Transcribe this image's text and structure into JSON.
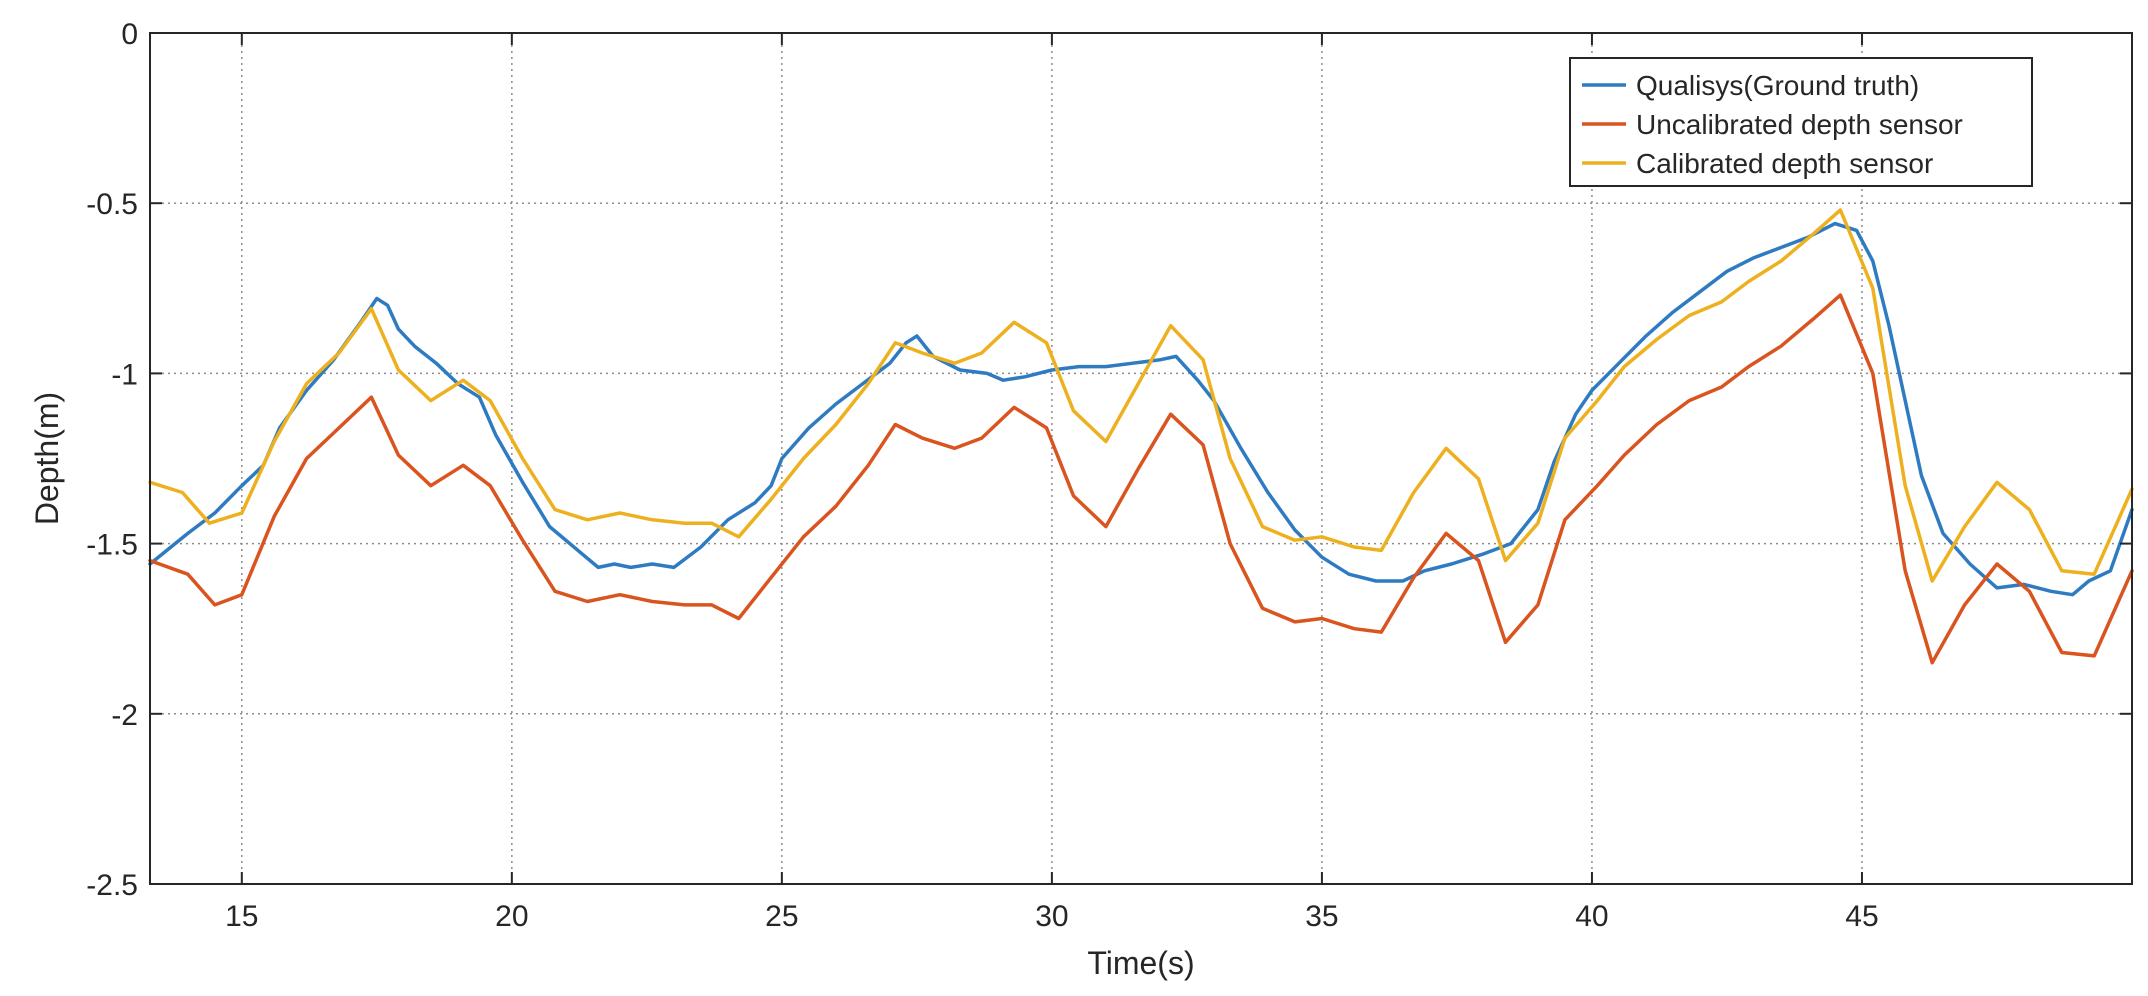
{
  "chart_data": {
    "type": "line",
    "title": "",
    "xlabel": "Time(s)",
    "ylabel": "Depth(m)",
    "xlim": [
      13.3,
      50
    ],
    "ylim": [
      -2.5,
      0
    ],
    "xticks": [
      15,
      20,
      25,
      30,
      35,
      40,
      45
    ],
    "yticks": [
      0,
      -0.5,
      -1,
      -1.5,
      -2,
      -2.5
    ],
    "xtick_labels": [
      "15",
      "20",
      "25",
      "30",
      "35",
      "40",
      "45"
    ],
    "ytick_labels": [
      "0",
      "-0.5",
      "-1",
      "-1.5",
      "-2",
      "-2.5"
    ],
    "grid": true,
    "legend_position": "top-right",
    "series": [
      {
        "name": "Qualisys(Ground truth)",
        "color": "#2f7bc1",
        "points": [
          [
            13.3,
            -1.56
          ],
          [
            14.0,
            -1.47
          ],
          [
            14.5,
            -1.41
          ],
          [
            15.0,
            -1.33
          ],
          [
            15.4,
            -1.27
          ],
          [
            15.7,
            -1.16
          ],
          [
            16.2,
            -1.05
          ],
          [
            16.7,
            -0.96
          ],
          [
            17.2,
            -0.85
          ],
          [
            17.5,
            -0.78
          ],
          [
            17.7,
            -0.8
          ],
          [
            17.9,
            -0.87
          ],
          [
            18.2,
            -0.92
          ],
          [
            18.6,
            -0.97
          ],
          [
            19.0,
            -1.03
          ],
          [
            19.4,
            -1.07
          ],
          [
            19.7,
            -1.18
          ],
          [
            20.2,
            -1.32
          ],
          [
            20.7,
            -1.45
          ],
          [
            21.3,
            -1.53
          ],
          [
            21.6,
            -1.57
          ],
          [
            21.9,
            -1.56
          ],
          [
            22.2,
            -1.57
          ],
          [
            22.6,
            -1.56
          ],
          [
            23.0,
            -1.57
          ],
          [
            23.5,
            -1.51
          ],
          [
            24.0,
            -1.43
          ],
          [
            24.5,
            -1.38
          ],
          [
            24.8,
            -1.33
          ],
          [
            25.0,
            -1.25
          ],
          [
            25.5,
            -1.16
          ],
          [
            26.0,
            -1.09
          ],
          [
            26.5,
            -1.03
          ],
          [
            27.0,
            -0.97
          ],
          [
            27.3,
            -0.91
          ],
          [
            27.5,
            -0.89
          ],
          [
            27.8,
            -0.95
          ],
          [
            28.3,
            -0.99
          ],
          [
            28.8,
            -1.0
          ],
          [
            29.1,
            -1.02
          ],
          [
            29.5,
            -1.01
          ],
          [
            30.0,
            -0.99
          ],
          [
            30.5,
            -0.98
          ],
          [
            31.0,
            -0.98
          ],
          [
            31.5,
            -0.97
          ],
          [
            32.0,
            -0.96
          ],
          [
            32.3,
            -0.95
          ],
          [
            32.7,
            -1.02
          ],
          [
            33.0,
            -1.08
          ],
          [
            33.5,
            -1.22
          ],
          [
            34.0,
            -1.35
          ],
          [
            34.5,
            -1.46
          ],
          [
            35.0,
            -1.54
          ],
          [
            35.5,
            -1.59
          ],
          [
            36.0,
            -1.61
          ],
          [
            36.5,
            -1.61
          ],
          [
            36.9,
            -1.58
          ],
          [
            37.4,
            -1.56
          ],
          [
            38.0,
            -1.53
          ],
          [
            38.5,
            -1.5
          ],
          [
            39.0,
            -1.4
          ],
          [
            39.3,
            -1.26
          ],
          [
            39.7,
            -1.12
          ],
          [
            40.0,
            -1.05
          ],
          [
            40.5,
            -0.97
          ],
          [
            41.0,
            -0.89
          ],
          [
            41.5,
            -0.82
          ],
          [
            42.0,
            -0.76
          ],
          [
            42.5,
            -0.7
          ],
          [
            43.0,
            -0.66
          ],
          [
            43.5,
            -0.63
          ],
          [
            44.0,
            -0.6
          ],
          [
            44.5,
            -0.56
          ],
          [
            44.9,
            -0.58
          ],
          [
            45.2,
            -0.67
          ],
          [
            45.5,
            -0.86
          ],
          [
            45.8,
            -1.08
          ],
          [
            46.1,
            -1.3
          ],
          [
            46.5,
            -1.47
          ],
          [
            47.0,
            -1.56
          ],
          [
            47.5,
            -1.63
          ],
          [
            48.0,
            -1.62
          ],
          [
            48.5,
            -1.64
          ],
          [
            48.9,
            -1.65
          ],
          [
            49.2,
            -1.61
          ],
          [
            49.6,
            -1.58
          ],
          [
            50.0,
            -1.4
          ]
        ]
      },
      {
        "name": "Uncalibrated depth sensor",
        "color": "#d9541f",
        "points": [
          [
            13.3,
            -1.55
          ],
          [
            14.0,
            -1.59
          ],
          [
            14.5,
            -1.68
          ],
          [
            15.0,
            -1.65
          ],
          [
            15.6,
            -1.42
          ],
          [
            16.2,
            -1.25
          ],
          [
            16.8,
            -1.16
          ],
          [
            17.4,
            -1.07
          ],
          [
            17.9,
            -1.24
          ],
          [
            18.5,
            -1.33
          ],
          [
            19.1,
            -1.27
          ],
          [
            19.6,
            -1.33
          ],
          [
            20.2,
            -1.49
          ],
          [
            20.8,
            -1.64
          ],
          [
            21.4,
            -1.67
          ],
          [
            22.0,
            -1.65
          ],
          [
            22.6,
            -1.67
          ],
          [
            23.2,
            -1.68
          ],
          [
            23.7,
            -1.68
          ],
          [
            24.2,
            -1.72
          ],
          [
            24.8,
            -1.6
          ],
          [
            25.4,
            -1.48
          ],
          [
            26.0,
            -1.39
          ],
          [
            26.6,
            -1.27
          ],
          [
            27.1,
            -1.15
          ],
          [
            27.6,
            -1.19
          ],
          [
            28.2,
            -1.22
          ],
          [
            28.7,
            -1.19
          ],
          [
            29.3,
            -1.1
          ],
          [
            29.9,
            -1.16
          ],
          [
            30.4,
            -1.36
          ],
          [
            31.0,
            -1.45
          ],
          [
            31.6,
            -1.28
          ],
          [
            32.2,
            -1.12
          ],
          [
            32.8,
            -1.21
          ],
          [
            33.3,
            -1.5
          ],
          [
            33.9,
            -1.69
          ],
          [
            34.5,
            -1.73
          ],
          [
            35.0,
            -1.72
          ],
          [
            35.6,
            -1.75
          ],
          [
            36.1,
            -1.76
          ],
          [
            36.7,
            -1.6
          ],
          [
            37.3,
            -1.47
          ],
          [
            37.9,
            -1.55
          ],
          [
            38.4,
            -1.79
          ],
          [
            39.0,
            -1.68
          ],
          [
            39.5,
            -1.43
          ],
          [
            40.1,
            -1.33
          ],
          [
            40.6,
            -1.24
          ],
          [
            41.2,
            -1.15
          ],
          [
            41.8,
            -1.08
          ],
          [
            42.4,
            -1.04
          ],
          [
            42.9,
            -0.98
          ],
          [
            43.5,
            -0.92
          ],
          [
            44.1,
            -0.84
          ],
          [
            44.6,
            -0.77
          ],
          [
            45.2,
            -1.0
          ],
          [
            45.8,
            -1.58
          ],
          [
            46.3,
            -1.85
          ],
          [
            46.9,
            -1.68
          ],
          [
            47.5,
            -1.56
          ],
          [
            48.1,
            -1.64
          ],
          [
            48.7,
            -1.82
          ],
          [
            49.3,
            -1.83
          ],
          [
            50.0,
            -1.58
          ]
        ]
      },
      {
        "name": "Calibrated depth sensor",
        "color": "#edb120",
        "points": [
          [
            13.3,
            -1.32
          ],
          [
            13.9,
            -1.35
          ],
          [
            14.4,
            -1.44
          ],
          [
            15.0,
            -1.41
          ],
          [
            15.6,
            -1.2
          ],
          [
            16.2,
            -1.03
          ],
          [
            16.8,
            -0.94
          ],
          [
            17.4,
            -0.81
          ],
          [
            17.9,
            -0.99
          ],
          [
            18.5,
            -1.08
          ],
          [
            19.1,
            -1.02
          ],
          [
            19.6,
            -1.08
          ],
          [
            20.2,
            -1.25
          ],
          [
            20.8,
            -1.4
          ],
          [
            21.4,
            -1.43
          ],
          [
            22.0,
            -1.41
          ],
          [
            22.6,
            -1.43
          ],
          [
            23.2,
            -1.44
          ],
          [
            23.7,
            -1.44
          ],
          [
            24.2,
            -1.48
          ],
          [
            24.8,
            -1.37
          ],
          [
            25.4,
            -1.25
          ],
          [
            26.0,
            -1.15
          ],
          [
            26.6,
            -1.03
          ],
          [
            27.1,
            -0.91
          ],
          [
            27.6,
            -0.94
          ],
          [
            28.2,
            -0.97
          ],
          [
            28.7,
            -0.94
          ],
          [
            29.3,
            -0.85
          ],
          [
            29.9,
            -0.91
          ],
          [
            30.4,
            -1.11
          ],
          [
            31.0,
            -1.2
          ],
          [
            31.6,
            -1.03
          ],
          [
            32.2,
            -0.86
          ],
          [
            32.8,
            -0.96
          ],
          [
            33.3,
            -1.25
          ],
          [
            33.9,
            -1.45
          ],
          [
            34.5,
            -1.49
          ],
          [
            35.0,
            -1.48
          ],
          [
            35.6,
            -1.51
          ],
          [
            36.1,
            -1.52
          ],
          [
            36.7,
            -1.35
          ],
          [
            37.3,
            -1.22
          ],
          [
            37.9,
            -1.31
          ],
          [
            38.4,
            -1.55
          ],
          [
            39.0,
            -1.44
          ],
          [
            39.5,
            -1.19
          ],
          [
            40.1,
            -1.08
          ],
          [
            40.6,
            -0.98
          ],
          [
            41.2,
            -0.9
          ],
          [
            41.8,
            -0.83
          ],
          [
            42.4,
            -0.79
          ],
          [
            42.9,
            -0.73
          ],
          [
            43.5,
            -0.67
          ],
          [
            44.1,
            -0.59
          ],
          [
            44.6,
            -0.52
          ],
          [
            45.2,
            -0.75
          ],
          [
            45.8,
            -1.33
          ],
          [
            46.3,
            -1.61
          ],
          [
            46.9,
            -1.45
          ],
          [
            47.5,
            -1.32
          ],
          [
            48.1,
            -1.4
          ],
          [
            48.7,
            -1.58
          ],
          [
            49.3,
            -1.59
          ],
          [
            50.0,
            -1.34
          ]
        ]
      }
    ]
  }
}
